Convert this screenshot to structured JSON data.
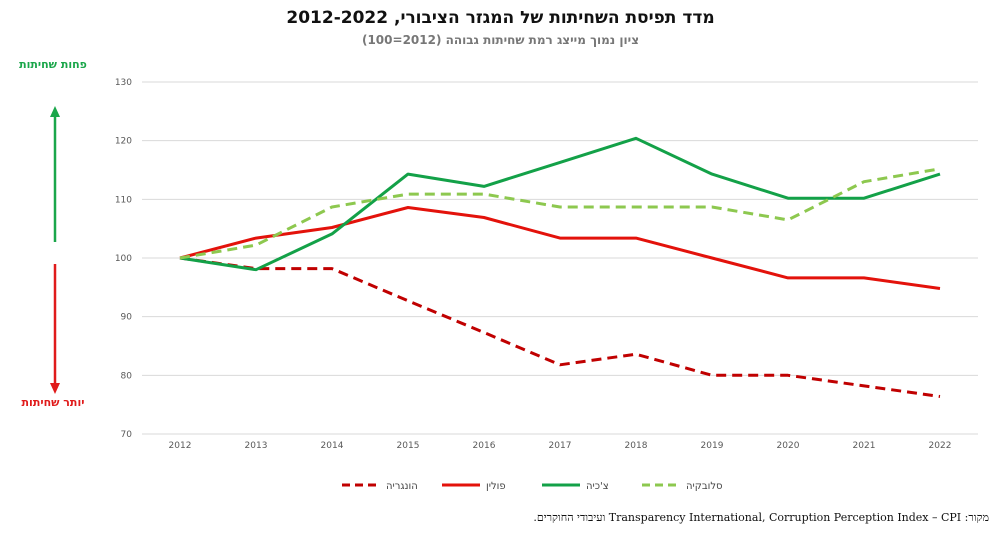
{
  "chart_data": {
    "type": "line",
    "title": "מדד תפיסת השחיתות של המגזר הציבורי, 2012-2022",
    "subtitle": "ציון נמוך מייצג רמת שחיתות גבוהה (2012=100)",
    "x": [
      "2012",
      "2013",
      "2014",
      "2015",
      "2016",
      "2017",
      "2018",
      "2019",
      "2020",
      "2021",
      "2022"
    ],
    "ylim": [
      70,
      130
    ],
    "yticks": [
      70,
      80,
      90,
      100,
      110,
      120,
      130
    ],
    "grid": true,
    "legend_position": "bottom",
    "series": [
      {
        "name": "הונגריה",
        "color": "#c00000",
        "dash": true,
        "values": [
          100,
          98.2,
          98.2,
          92.7,
          87.3,
          81.8,
          83.6,
          80.0,
          80.0,
          78.2,
          76.4
        ]
      },
      {
        "name": "פולין",
        "color": "#e3120b",
        "dash": false,
        "values": [
          100,
          103.4,
          105.2,
          108.6,
          106.9,
          103.4,
          103.4,
          100.0,
          96.6,
          96.6,
          94.8
        ]
      },
      {
        "name": "צ'כיה",
        "color": "#13a148",
        "dash": false,
        "values": [
          100,
          98.0,
          104.1,
          114.3,
          112.2,
          116.3,
          120.4,
          114.3,
          110.2,
          110.2,
          114.3
        ]
      },
      {
        "name": "סלובקיה",
        "color": "#8dc84f",
        "dash": true,
        "values": [
          100,
          102.2,
          108.7,
          110.9,
          110.9,
          108.7,
          108.7,
          108.7,
          106.5,
          113.0,
          115.2
        ]
      }
    ]
  },
  "side_labels": {
    "less_corruption": "פחות שחיתות",
    "more_corruption": "יותר שחיתות",
    "up_color": "#1aa64a",
    "down_color": "#e01b1b"
  },
  "source_note": "מקור: Transparency International, Corruption Perception Index – CPI ועיבודי החוקרים."
}
